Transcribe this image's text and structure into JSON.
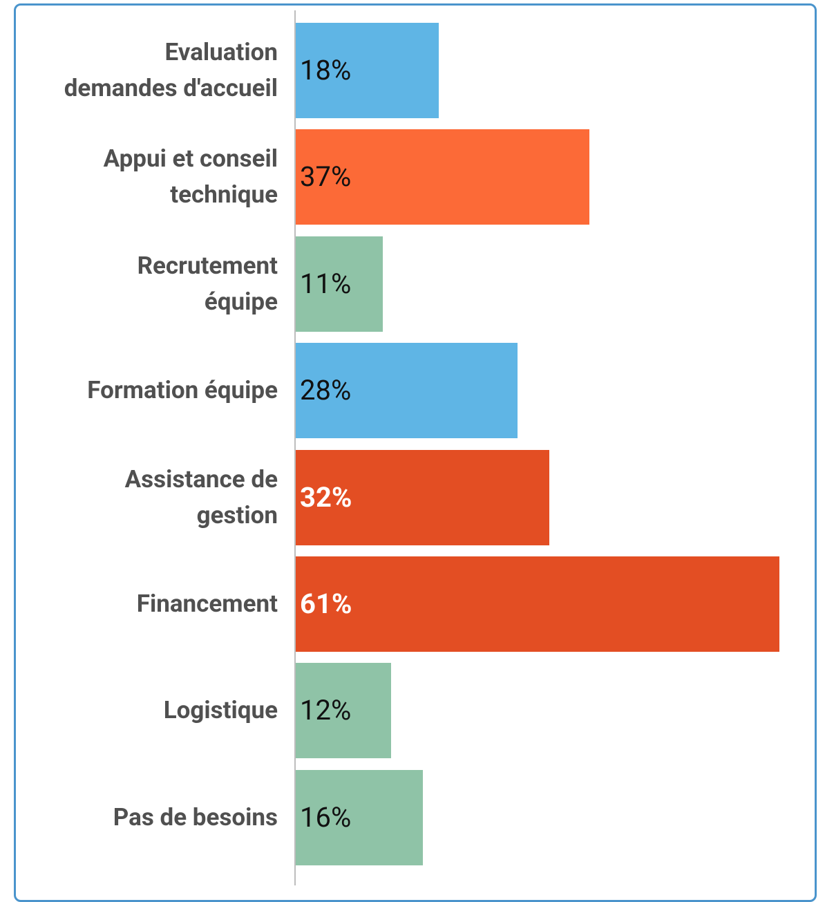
{
  "chart_data": {
    "type": "bar",
    "orientation": "horizontal",
    "categories": [
      "Evaluation\ndemandes d'accueil",
      "Appui et conseil\ntechnique",
      "Recrutement\néquipe",
      "Formation équipe",
      "Assistance de\ngestion",
      "Financement",
      "Logistique",
      "Pas de besoins"
    ],
    "values": [
      18,
      37,
      11,
      28,
      32,
      61,
      12,
      16
    ],
    "value_labels": [
      "18%",
      "37%",
      "11%",
      "28%",
      "32%",
      "61%",
      "12%",
      "16%"
    ],
    "colors": [
      "#5fb5e5",
      "#fc6a37",
      "#8fc3a7",
      "#5fb5e5",
      "#e34e23",
      "#e34e23",
      "#8fc3a7",
      "#8fc3a7"
    ],
    "value_label_colors": [
      "#111111",
      "#111111",
      "#111111",
      "#111111",
      "#ffffff",
      "#ffffff",
      "#111111",
      "#111111"
    ]
  }
}
